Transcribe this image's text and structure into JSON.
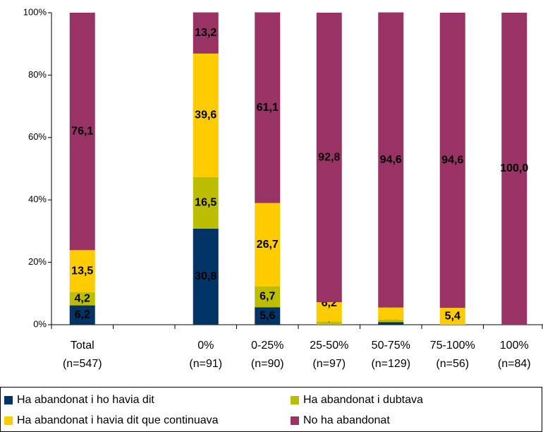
{
  "chart_data": {
    "type": "stacked_bar",
    "categories": [
      "Total\n(n=547)",
      null,
      "0%\n(n=91)",
      "0-25%\n(n=90)",
      "25-50%\n(n=97)",
      "50-75%\n(n=129)",
      "75-100%\n(n=56)",
      "100%\n(n=84)"
    ],
    "series": [
      {
        "name": "Ha abandonat i ho havia dit",
        "color": "#003366",
        "values": [
          6.2,
          null,
          30.8,
          5.6,
          null,
          0.8,
          null,
          null
        ],
        "value_labels": [
          "6,2",
          null,
          "30,8",
          "5,6",
          null,
          "0,8",
          null,
          null
        ]
      },
      {
        "name": "Ha abandonat i dubtava",
        "color": "#bdbd00",
        "values": [
          4.2,
          null,
          16.5,
          6.7,
          1.0,
          0.8,
          null,
          null
        ],
        "value_labels": [
          "4,2",
          null,
          "16,5",
          "6,7",
          "1,0",
          "0,8",
          null,
          null
        ]
      },
      {
        "name": "Ha abandonat i havia dit que continuava",
        "color": "#ffcc00",
        "values": [
          13.5,
          null,
          39.6,
          26.7,
          6.2,
          3.9,
          5.4,
          null
        ],
        "value_labels": [
          "13,5",
          null,
          "39,6",
          "26,7",
          "6,2",
          "3,9",
          "5,4",
          null
        ]
      },
      {
        "name": "No ha abandonat",
        "color": "#993366",
        "values": [
          76.1,
          null,
          13.2,
          61.1,
          92.8,
          94.6,
          94.6,
          100.0
        ],
        "value_labels": [
          "76,1",
          null,
          "13,2",
          "61,1",
          "92,8",
          "94,6",
          "94,6",
          "100,0"
        ]
      }
    ],
    "ylim": [
      0,
      100
    ],
    "yticks": [
      {
        "value": 0,
        "label": "0%"
      },
      {
        "value": 20,
        "label": "20%"
      },
      {
        "value": 40,
        "label": "40%"
      },
      {
        "value": 60,
        "label": "60%"
      },
      {
        "value": 80,
        "label": "80%"
      },
      {
        "value": 100,
        "label": "100%"
      }
    ],
    "legend": "bottom"
  }
}
